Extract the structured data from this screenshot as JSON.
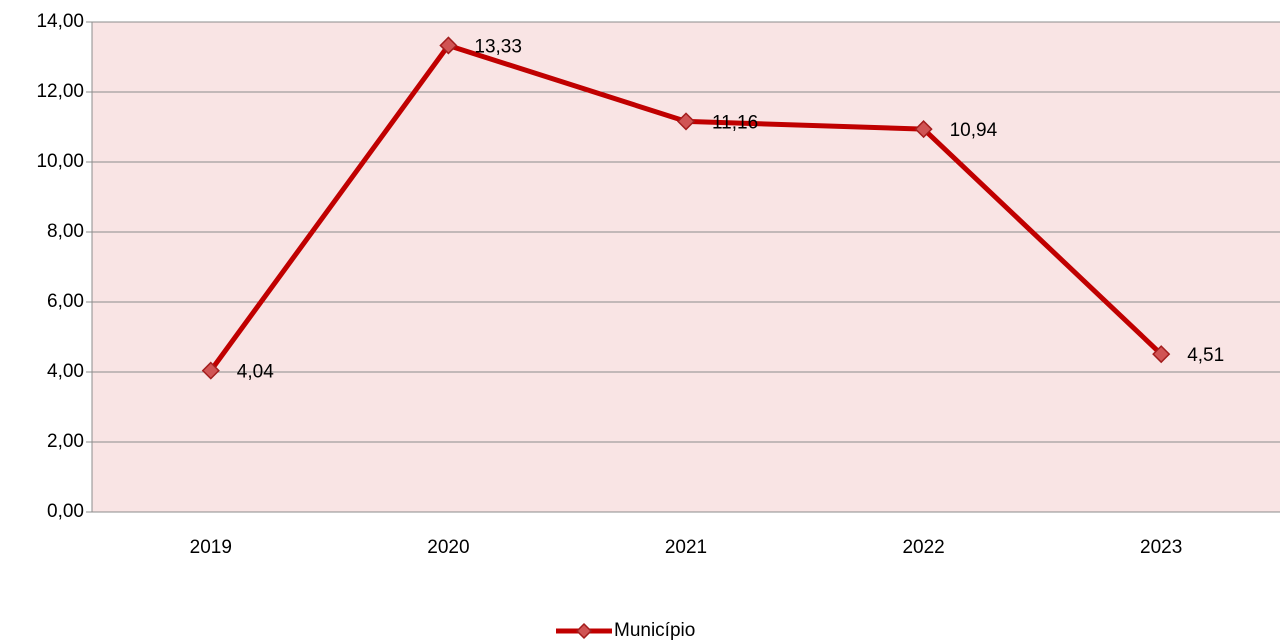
{
  "chart_data": {
    "type": "line",
    "categories": [
      "2019",
      "2020",
      "2021",
      "2022",
      "2023"
    ],
    "series": [
      {
        "name": "Município",
        "color": "#c00000",
        "values": [
          4.04,
          13.33,
          11.16,
          10.94,
          4.51
        ],
        "value_labels": [
          "4,04",
          "13,33",
          "11,16",
          "10,94",
          "4,51"
        ]
      }
    ],
    "ylim": [
      0,
      14
    ],
    "yticks": [
      {
        "value": 0,
        "label": "0,00"
      },
      {
        "value": 2,
        "label": "2,00"
      },
      {
        "value": 4,
        "label": "4,00"
      },
      {
        "value": 6,
        "label": "6,00"
      },
      {
        "value": 8,
        "label": "8,00"
      },
      {
        "value": 10,
        "label": "10,00"
      },
      {
        "value": 12,
        "label": "12,00"
      },
      {
        "value": 14,
        "label": "14,00"
      }
    ],
    "grid": true,
    "legend": "bottom"
  }
}
